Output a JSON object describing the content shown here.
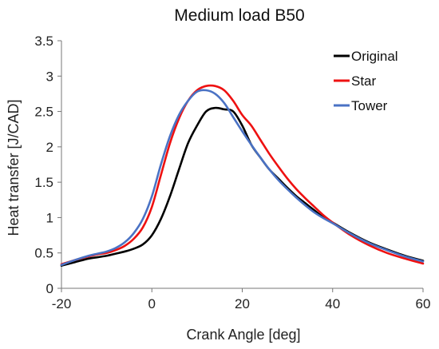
{
  "chart_data": {
    "type": "line",
    "title": "Medium load B50",
    "xlabel": "Crank Angle [deg]",
    "ylabel": "Heat transfer [J/CAD]",
    "xlim": [
      -20,
      60
    ],
    "ylim": [
      0,
      3.5
    ],
    "xticks": [
      -20,
      0,
      20,
      40,
      60
    ],
    "yticks": [
      0,
      0.5,
      1,
      1.5,
      2,
      2.5,
      3,
      3.5
    ],
    "xtick_labels": [
      "-20",
      "0",
      "20",
      "40",
      "60"
    ],
    "ytick_labels": [
      "0",
      "0.5",
      "1",
      "1.5",
      "2",
      "2.5",
      "3",
      "3.5"
    ],
    "grid": false,
    "legend_position": "top-right",
    "series": [
      {
        "name": "Original",
        "color": "#000000",
        "x": [
          -20,
          -17,
          -14,
          -12,
          -10,
          -8,
          -6,
          -4,
          -2,
          0,
          2,
          4,
          6,
          8,
          10,
          12,
          14,
          16,
          18,
          20,
          22,
          24,
          26,
          28,
          30,
          32,
          34,
          36,
          38,
          40,
          44,
          48,
          52,
          56,
          60
        ],
        "y": [
          0.32,
          0.37,
          0.42,
          0.44,
          0.46,
          0.49,
          0.52,
          0.56,
          0.62,
          0.75,
          0.98,
          1.3,
          1.68,
          2.05,
          2.3,
          2.5,
          2.55,
          2.53,
          2.5,
          2.3,
          2.03,
          1.85,
          1.68,
          1.55,
          1.42,
          1.3,
          1.2,
          1.1,
          1.0,
          0.93,
          0.78,
          0.65,
          0.55,
          0.46,
          0.39
        ]
      },
      {
        "name": "Star",
        "color": "#ee1111",
        "x": [
          -20,
          -17,
          -14,
          -12,
          -10,
          -8,
          -6,
          -4,
          -2,
          0,
          2,
          4,
          6,
          8,
          10,
          12,
          14,
          16,
          18,
          20,
          22,
          24,
          26,
          28,
          30,
          32,
          34,
          36,
          38,
          40,
          44,
          48,
          52,
          56,
          60
        ],
        "y": [
          0.34,
          0.4,
          0.45,
          0.48,
          0.5,
          0.54,
          0.6,
          0.7,
          0.86,
          1.15,
          1.6,
          2.05,
          2.4,
          2.65,
          2.8,
          2.86,
          2.86,
          2.8,
          2.65,
          2.45,
          2.3,
          2.1,
          1.9,
          1.72,
          1.55,
          1.4,
          1.27,
          1.15,
          1.03,
          0.93,
          0.75,
          0.61,
          0.5,
          0.42,
          0.35
        ]
      },
      {
        "name": "Tower",
        "color": "#4a72c4",
        "x": [
          -20,
          -17,
          -14,
          -12,
          -10,
          -8,
          -6,
          -4,
          -2,
          0,
          2,
          4,
          6,
          8,
          10,
          12,
          14,
          16,
          18,
          20,
          22,
          24,
          26,
          28,
          30,
          32,
          34,
          36,
          38,
          40,
          44,
          48,
          52,
          56,
          60
        ],
        "y": [
          0.33,
          0.4,
          0.46,
          0.49,
          0.52,
          0.57,
          0.65,
          0.78,
          0.98,
          1.3,
          1.75,
          2.15,
          2.45,
          2.65,
          2.78,
          2.8,
          2.75,
          2.62,
          2.42,
          2.22,
          2.03,
          1.85,
          1.68,
          1.53,
          1.4,
          1.28,
          1.17,
          1.07,
          0.99,
          0.92,
          0.77,
          0.64,
          0.54,
          0.45,
          0.38
        ]
      }
    ]
  }
}
